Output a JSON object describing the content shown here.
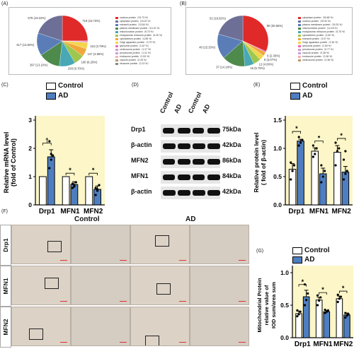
{
  "panels": {
    "A": "(A)",
    "B": "(B)",
    "C": "(C)",
    "D": "(D)",
    "E": "(E)",
    "F": "(F)",
    "G": "(G)"
  },
  "colors": {
    "control": "#ffffff",
    "ad": "#4f7ec0",
    "highlight": "#fcf6c8"
  },
  "pieA": {
    "slices": [
      {
        "value": 719,
        "label": "719 (23.73%)",
        "color": "#e02a2a"
      },
      {
        "value": 16,
        "label": "",
        "color": "#e86fb0"
      },
      {
        "value": 16,
        "label": "",
        "color": "#d29ad0"
      },
      {
        "value": 115,
        "label": "115 (3.79%)",
        "color": "#f3d54a"
      },
      {
        "value": 147,
        "label": "147 (4.85%)",
        "color": "#f0a83a"
      },
      {
        "value": 190,
        "label": "190 (6.26%)",
        "color": "#9ec74f"
      },
      {
        "value": 293,
        "label": "293 (9.70%)",
        "color": "#49a8b5"
      },
      {
        "value": 397,
        "label": "397 (13.10%)",
        "color": "#4f8a4d"
      },
      {
        "value": 417,
        "label": "417 (13.84%)",
        "color": "#5a7db8"
      },
      {
        "value": 575,
        "label": "575 (19.22%)",
        "color": "#6d6f96"
      }
    ],
    "legend": [
      "nucleus protein（23.73 %）",
      "cytoplasm protein（19.22 %）",
      "extracell protein（13.84 %）",
      "plasma membrane protein（13.10 %）",
      "mitochondrion protein（9.70 %）",
      "endoplasmic reticulum protein（6.26 %）",
      "cytoskeleton protein（4.85 %）",
      "Golgi apparatus protein（3.79 %）",
      "lysosome protein（1.67 %）",
      "centrosome protein（1.27 %）",
      "peroxisome protein（1.01 %）",
      "endosome protein（0.53 %）",
      "vacuole protein（0.25 %）",
      "ribosome protein（0.13 %）"
    ]
  },
  "pieB": {
    "slices": [
      {
        "value": 80,
        "label": "80 (30.65%)",
        "color": "#e02a2a"
      },
      {
        "value": 2,
        "label": "",
        "color": "#e86fb0"
      },
      {
        "value": 6,
        "label": "6 (2.30%)",
        "color": "#f0a83a"
      },
      {
        "value": 8,
        "label": "8 (3.07%)",
        "color": "#f3d54a"
      },
      {
        "value": 12,
        "label": "12 (4.60%)",
        "color": "#9ec74f"
      },
      {
        "value": 15,
        "label": "15 (5.75%)",
        "color": "#49a8b5"
      },
      {
        "value": 37,
        "label": "37 (14.18%)",
        "color": "#4f8a4d"
      },
      {
        "value": 40,
        "label": "40 (15.33%)",
        "color": "#5a7db8"
      },
      {
        "value": 52,
        "label": "52 (19.92%)",
        "color": "#6d6f96"
      }
    ],
    "legend": [
      "cytoplasm protein（30.65 %）",
      "nucleus protein（19.92 %）",
      "plasma membrane protein（15.33 %）",
      "mitochondrion protein（14.18 %）",
      "endoplasmic reticulum protein（5.75 %）",
      "cytoskeleton protein（4.60 %）",
      "extracell protein（3.07 %）",
      "Golgi apparatus protein（2.30 %）",
      "lysosome protein（1.53 %）",
      "peroxisome protein（0.77 %）",
      "vacuole protein（0.38 %）",
      "endosome protein（0.38 %）",
      "centrosome protein（0.38 %）"
    ]
  },
  "legend_labels": {
    "control": "Control",
    "ad": "AD"
  },
  "chart_data": [
    {
      "type": "bar",
      "panel": "C",
      "categories": [
        "Drp1",
        "MFN1",
        "MFN2"
      ],
      "series": [
        {
          "name": "Control",
          "values": [
            1.0,
            1.0,
            1.0
          ]
        },
        {
          "name": "AD",
          "values": [
            1.7,
            0.72,
            0.55
          ]
        }
      ],
      "errors": [
        [
          0,
          0,
          0
        ],
        [
          0.25,
          0.1,
          0.12
        ]
      ],
      "points": [
        [
          [],
          [],
          []
        ],
        [
          [
            1.3,
            1.6,
            1.75,
            2.25,
            1.8
          ],
          [
            0.6,
            0.7,
            0.8,
            0.75,
            0.65
          ],
          [
            0.35,
            0.5,
            0.7,
            0.6,
            0.55
          ]
        ]
      ],
      "ylabel": "Relative mRNA level\n(fold of Control)",
      "yticks": [
        "0",
        "1",
        "2",
        "3"
      ],
      "ylim": [
        0,
        3
      ],
      "sig": [
        "†",
        "*",
        "*"
      ]
    },
    {
      "type": "bar",
      "panel": "E",
      "categories": [
        "Drp1",
        "MFN1",
        "MFN2"
      ],
      "series": [
        {
          "name": "Control",
          "values": [
            0.63,
            0.95,
            0.93
          ]
        },
        {
          "name": "AD",
          "values": [
            1.13,
            0.55,
            0.58
          ]
        }
      ],
      "errors": [
        [
          0.1,
          0.06,
          0.12
        ],
        [
          0.03,
          0.1,
          0.1
        ]
      ],
      "points": [
        [
          [
            0.45,
            0.6,
            0.7,
            0.75
          ],
          [
            0.85,
            0.9,
            1.0,
            1.05
          ],
          [
            0.7,
            0.95,
            1.0,
            1.1
          ]
        ],
        [
          [
            1.05,
            1.1,
            1.15,
            1.2
          ],
          [
            0.4,
            0.5,
            0.6,
            0.7
          ],
          [
            0.45,
            0.55,
            0.6,
            0.8,
            0.95
          ]
        ]
      ],
      "ylabel": "Relative protein level\n( fold of β-actin)",
      "yticks": [
        "0.0",
        "0.5",
        "1.0",
        "1.5"
      ],
      "ylim": [
        0,
        1.5
      ],
      "sig": [
        "*",
        "*",
        "*"
      ]
    },
    {
      "type": "bar",
      "panel": "G",
      "categories": [
        "Drp1",
        "MFN1",
        "MFN2"
      ],
      "series": [
        {
          "name": "Control",
          "values": [
            0.37,
            0.58,
            0.6
          ]
        },
        {
          "name": "AD",
          "values": [
            0.63,
            0.4,
            0.35
          ]
        }
      ],
      "errors": [
        [
          0.04,
          0.04,
          0.04
        ],
        [
          0.1,
          0.02,
          0.03
        ]
      ],
      "points": [
        [
          [
            0.33,
            0.36,
            0.4,
            0.42
          ],
          [
            0.5,
            0.57,
            0.62,
            0.65
          ],
          [
            0.55,
            0.6,
            0.63,
            0.66
          ]
        ],
        [
          [
            0.5,
            0.58,
            0.68,
            0.82
          ],
          [
            0.38,
            0.4,
            0.42,
            0.43
          ],
          [
            0.31,
            0.34,
            0.36,
            0.38
          ]
        ]
      ],
      "ylabel": "Mitochondrial Protein\nrelative value of\nIOD sum/area sum",
      "yticks": [
        "0.0",
        "0.5",
        "1.0"
      ],
      "ylim": [
        0,
        1.0
      ],
      "sig": [
        "*",
        "*",
        "*"
      ]
    }
  ],
  "blot": {
    "lanes": [
      "Control",
      "AD",
      "Control",
      "AD"
    ],
    "rows": [
      {
        "name": "Drp1",
        "kda": "75kDa"
      },
      {
        "name": "β-actin",
        "kda": "42kDa"
      },
      {
        "name": "MFN2",
        "kda": "86kDa"
      },
      {
        "name": "MFN1",
        "kda": "84kDa"
      },
      {
        "name": "β-actin",
        "kda": "42kDa"
      }
    ]
  },
  "micro": {
    "groups": [
      "Control",
      "AD"
    ],
    "rows": [
      "Drp1",
      "MFN1",
      "MFN2"
    ]
  }
}
